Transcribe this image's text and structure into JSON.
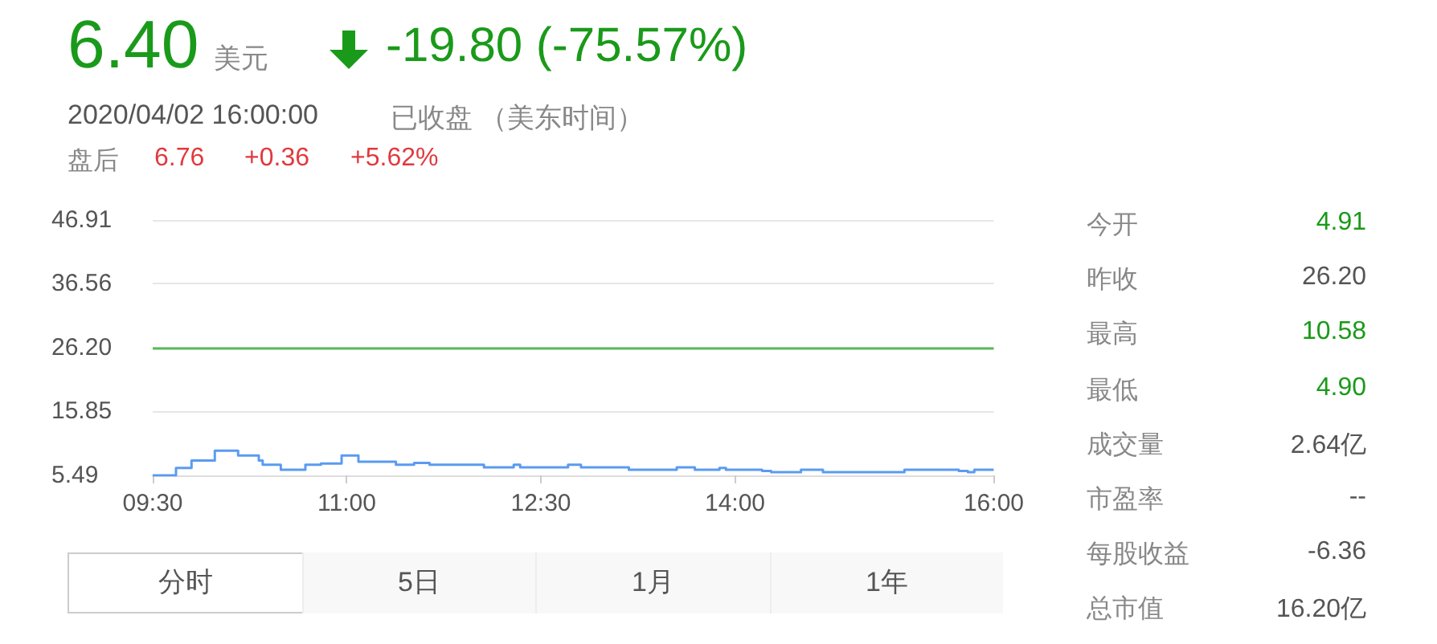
{
  "chart_data": {
    "type": "step",
    "x": [
      9.5,
      9.67,
      9.68,
      9.79,
      9.8,
      9.97,
      9.98,
      10.08,
      10.16,
      10.32,
      10.35,
      10.49,
      10.58,
      10.68,
      10.8,
      10.96,
      11.07,
      11.09,
      11.38,
      11.52,
      11.64,
      12.03,
      12.06,
      12.27,
      12.29,
      12.34,
      12.71,
      12.81,
      13.18,
      13.55,
      13.69,
      13.88,
      13.93,
      14.21,
      14.28,
      14.49,
      14.51,
      14.68,
      15.28,
      15.31,
      15.73,
      15.8,
      15.85,
      16
    ],
    "series": [
      {
        "color": "#5b9bf0",
        "values": [
          5.5,
          5.5,
          6.7,
          6.7,
          7.9,
          7.9,
          9.5,
          9.5,
          8.7,
          7.9,
          7.2,
          6.4,
          6.4,
          7.2,
          7.4,
          8.7,
          8.7,
          7.7,
          7.2,
          7.5,
          7.2,
          7.2,
          6.8,
          6.8,
          7.2,
          6.8,
          7.2,
          6.8,
          6.4,
          6.8,
          6.4,
          6.7,
          6.4,
          6.2,
          6.0,
          6.0,
          6.4,
          6.0,
          6.0,
          6.4,
          6.2,
          6.0,
          6.4,
          6.4
        ]
      }
    ],
    "xlim": [
      9.5,
      16
    ],
    "xticks": [
      {
        "value": 9.5,
        "label": "09:30"
      },
      {
        "value": 11,
        "label": "11:00"
      },
      {
        "value": 12.5,
        "label": "12:30"
      },
      {
        "value": 14,
        "label": "14:00"
      },
      {
        "value": 16,
        "label": "16:00"
      }
    ],
    "ylim": [
      5.49,
      46.91
    ],
    "yticks": [
      5.49,
      15.85,
      {
        "value": 26.2,
        "label": "26.20"
      },
      36.56,
      46.91
    ],
    "grid": "y",
    "ref_lines": [
      {
        "axis": "y",
        "value": 26.2,
        "color": "#5cb85c"
      }
    ],
    "annotations": [
      "6.40",
      "美元",
      "-19.80 (-75.57%)",
      "2020/04/02 16:00:00",
      "已收盘 （美东时间）",
      "盘后",
      "6.76",
      "+0.36",
      "+5.62%",
      "今开",
      "4.91",
      "昨收",
      "26.20",
      "最高",
      "10.58",
      "最低",
      "4.90",
      "成交量",
      "2.64亿",
      "市盈率",
      "--",
      "每股收益",
      "-6.36",
      "总市值",
      "16.20亿",
      "分时",
      "5日",
      "1月",
      "1年"
    ]
  }
}
